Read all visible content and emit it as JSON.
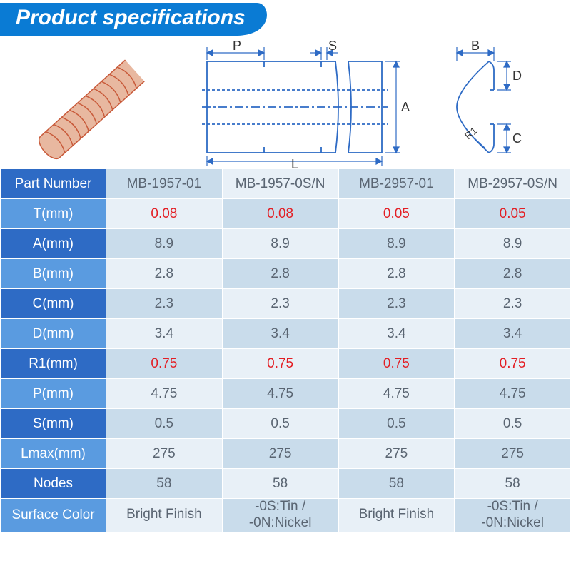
{
  "title": "Product specifications",
  "colors": {
    "header_blue": "#0a7bd4",
    "header_cell_blue": "#2e6bc5",
    "row_label_blue": "#2e6bc5",
    "row_label_light_blue": "#5a9be0",
    "cell_alt_a": "#e8f0f7",
    "cell_alt_b": "#c9dceb",
    "red": "#e31e24",
    "text_normal": "#5a6572",
    "diagram_stroke": "#2e6bc5",
    "coil_fill": "#e8b8a0",
    "coil_stroke": "#c85a3a"
  },
  "diagram": {
    "labels": {
      "P": "P",
      "S": "S",
      "B": "B",
      "A": "A",
      "L": "L",
      "D": "D",
      "C": "C",
      "R1": "R1"
    }
  },
  "table": {
    "headers": [
      "Part Number",
      "MB-1957-01",
      "MB-1957-0S/N",
      "MB-2957-01",
      "MB-2957-0S/N"
    ],
    "rows": [
      {
        "label": "T(mm)",
        "vals": [
          "0.08",
          "0.08",
          "0.05",
          "0.05"
        ],
        "red": true
      },
      {
        "label": "A(mm)",
        "vals": [
          "8.9",
          "8.9",
          "8.9",
          "8.9"
        ]
      },
      {
        "label": "B(mm)",
        "vals": [
          "2.8",
          "2.8",
          "2.8",
          "2.8"
        ]
      },
      {
        "label": "C(mm)",
        "vals": [
          "2.3",
          "2.3",
          "2.3",
          "2.3"
        ]
      },
      {
        "label": "D(mm)",
        "vals": [
          "3.4",
          "3.4",
          "3.4",
          "3.4"
        ]
      },
      {
        "label": "R1(mm)",
        "vals": [
          "0.75",
          "0.75",
          "0.75",
          "0.75"
        ],
        "red": true
      },
      {
        "label": "P(mm)",
        "vals": [
          "4.75",
          "4.75",
          "4.75",
          "4.75"
        ]
      },
      {
        "label": "S(mm)",
        "vals": [
          "0.5",
          "0.5",
          "0.5",
          "0.5"
        ]
      },
      {
        "label": "Lmax(mm)",
        "vals": [
          "275",
          "275",
          "275",
          "275"
        ]
      },
      {
        "label": "Nodes",
        "vals": [
          "58",
          "58",
          "58",
          "58"
        ]
      },
      {
        "label": "Surface Color",
        "vals": [
          "Bright Finish",
          "-0S:Tin /\n-0N:Nickel",
          "Bright Finish",
          "-0S:Tin /\n-0N:Nickel"
        ],
        "small": true
      }
    ]
  }
}
